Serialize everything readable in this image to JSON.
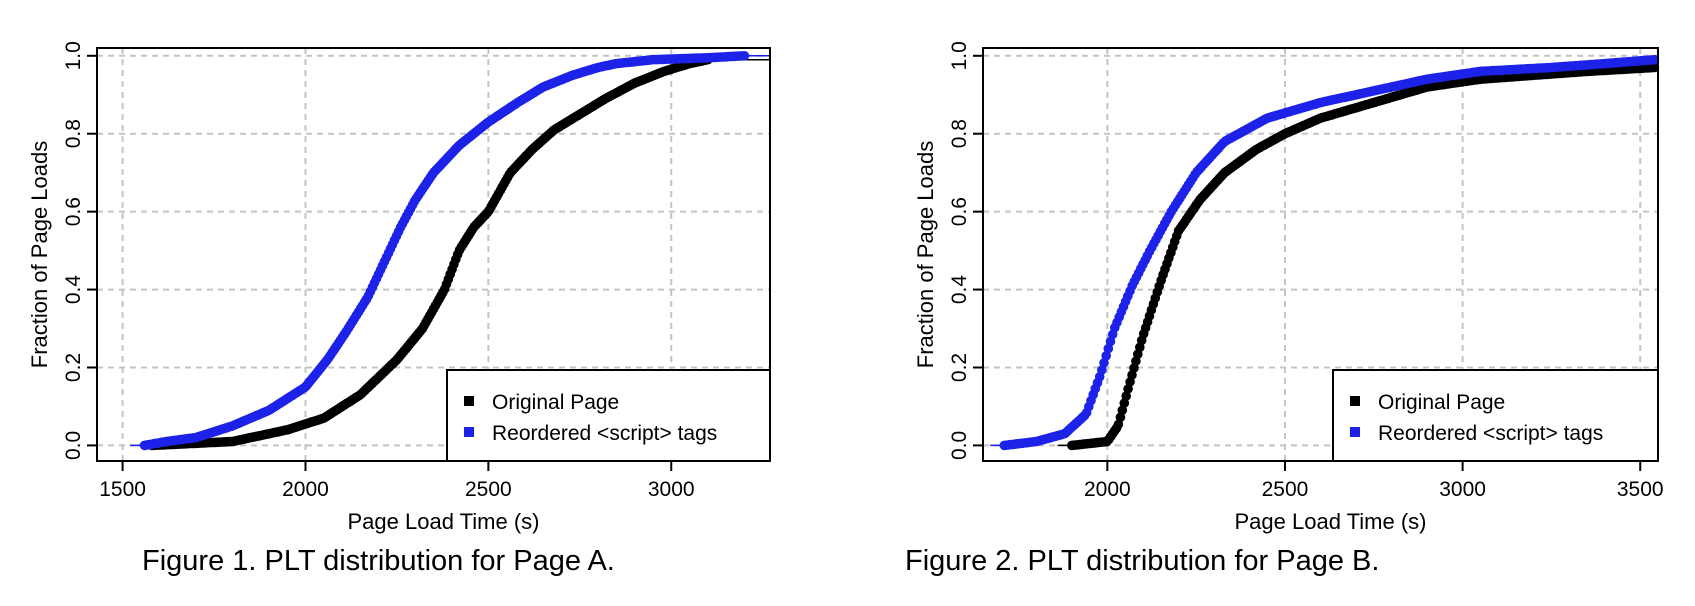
{
  "figures": [
    {
      "caption": "Figure 1. PLT distribution for Page A."
    },
    {
      "caption": "Figure 2. PLT distribution for Page B."
    }
  ],
  "chart_data": [
    {
      "type": "scatter",
      "title": "",
      "xlabel": "Page Load Time (s)",
      "ylabel": "Fraction of Page Loads",
      "xlim": [
        1430,
        3270
      ],
      "ylim": [
        -0.04,
        1.02
      ],
      "xticks": [
        1500,
        2000,
        2500,
        3000
      ],
      "yticks": [
        0.0,
        0.2,
        0.4,
        0.6,
        0.8,
        1.0
      ],
      "ytick_labels": [
        "0.0",
        "0.2",
        "0.4",
        "0.6",
        "0.8",
        "1.0"
      ],
      "grid": true,
      "legend_position": "bottom-right",
      "series": [
        {
          "name": "Original Page",
          "color": "#000000",
          "anchors": [
            [
              1580,
              0.0
            ],
            [
              1800,
              0.01
            ],
            [
              1850,
              0.02
            ],
            [
              1950,
              0.04
            ],
            [
              2050,
              0.07
            ],
            [
              2150,
              0.13
            ],
            [
              2250,
              0.22
            ],
            [
              2320,
              0.3
            ],
            [
              2380,
              0.4
            ],
            [
              2420,
              0.5
            ],
            [
              2460,
              0.56
            ],
            [
              2500,
              0.6
            ],
            [
              2560,
              0.7
            ],
            [
              2620,
              0.76
            ],
            [
              2680,
              0.81
            ],
            [
              2750,
              0.85
            ],
            [
              2820,
              0.89
            ],
            [
              2900,
              0.93
            ],
            [
              2980,
              0.96
            ],
            [
              3050,
              0.98
            ],
            [
              3100,
              0.99
            ]
          ]
        },
        {
          "name": "Reordered <script> tags",
          "color": "#1c22e8",
          "anchors": [
            [
              1560,
              0.0
            ],
            [
              1620,
              0.01
            ],
            [
              1700,
              0.02
            ],
            [
              1800,
              0.05
            ],
            [
              1900,
              0.09
            ],
            [
              2000,
              0.15
            ],
            [
              2060,
              0.22
            ],
            [
              2110,
              0.29
            ],
            [
              2170,
              0.38
            ],
            [
              2220,
              0.48
            ],
            [
              2260,
              0.56
            ],
            [
              2300,
              0.63
            ],
            [
              2350,
              0.7
            ],
            [
              2420,
              0.77
            ],
            [
              2500,
              0.83
            ],
            [
              2580,
              0.88
            ],
            [
              2650,
              0.92
            ],
            [
              2730,
              0.95
            ],
            [
              2800,
              0.97
            ],
            [
              2850,
              0.98
            ],
            [
              2950,
              0.99
            ],
            [
              3100,
              0.995
            ],
            [
              3200,
              1.0
            ]
          ]
        }
      ]
    },
    {
      "type": "scatter",
      "title": "",
      "xlabel": "Page Load Time (s)",
      "ylabel": "Fraction of Page Loads",
      "xlim": [
        1650,
        3550
      ],
      "ylim": [
        -0.04,
        1.02
      ],
      "xticks": [
        2000,
        2500,
        3000,
        3500
      ],
      "yticks": [
        0.0,
        0.2,
        0.4,
        0.6,
        0.8,
        1.0
      ],
      "ytick_labels": [
        "0.0",
        "0.2",
        "0.4",
        "0.6",
        "0.8",
        "1.0"
      ],
      "grid": true,
      "legend_position": "bottom-right",
      "series": [
        {
          "name": "Original Page",
          "color": "#000000",
          "anchors": [
            [
              1900,
              0.0
            ],
            [
              2000,
              0.01
            ],
            [
              2030,
              0.05
            ],
            [
              2060,
              0.15
            ],
            [
              2100,
              0.28
            ],
            [
              2150,
              0.42
            ],
            [
              2200,
              0.55
            ],
            [
              2260,
              0.63
            ],
            [
              2330,
              0.7
            ],
            [
              2420,
              0.76
            ],
            [
              2500,
              0.8
            ],
            [
              2600,
              0.84
            ],
            [
              2750,
              0.88
            ],
            [
              2900,
              0.92
            ],
            [
              3050,
              0.94
            ],
            [
              3200,
              0.95
            ],
            [
              3350,
              0.96
            ],
            [
              3540,
              0.97
            ]
          ]
        },
        {
          "name": "Reordered <script> tags",
          "color": "#1c22e8",
          "anchors": [
            [
              1710,
              0.0
            ],
            [
              1800,
              0.01
            ],
            [
              1880,
              0.03
            ],
            [
              1940,
              0.08
            ],
            [
              1980,
              0.18
            ],
            [
              2020,
              0.3
            ],
            [
              2070,
              0.41
            ],
            [
              2120,
              0.5
            ],
            [
              2180,
              0.6
            ],
            [
              2250,
              0.7
            ],
            [
              2330,
              0.78
            ],
            [
              2450,
              0.84
            ],
            [
              2600,
              0.88
            ],
            [
              2750,
              0.91
            ],
            [
              2900,
              0.94
            ],
            [
              3050,
              0.96
            ],
            [
              3250,
              0.97
            ],
            [
              3400,
              0.98
            ],
            [
              3540,
              0.99
            ]
          ]
        }
      ]
    }
  ]
}
